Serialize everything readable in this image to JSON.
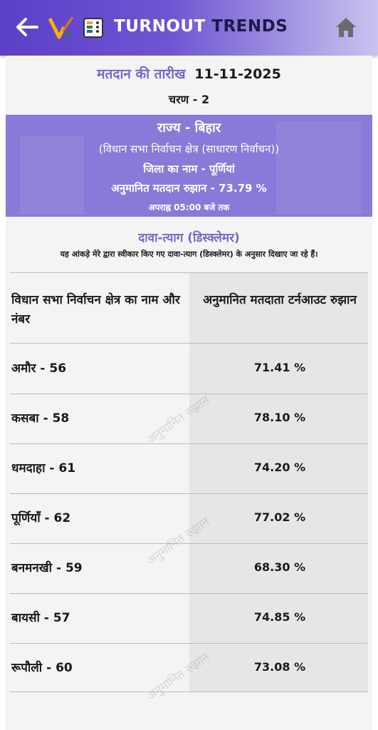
{
  "header": {
    "title_part1": "TURNOUT",
    "title_part2": "TRENDS",
    "back_icon": "arrow-left-icon",
    "home_icon": "home-icon",
    "colors": {
      "gradient_start": "#5b3fc8",
      "gradient_end": "#c9c3ef"
    }
  },
  "election": {
    "date_label": "मतदान की तारीख",
    "date_value": "11-11-2025",
    "phase": "चरण - 2"
  },
  "banner": {
    "state": "राज्य - बिहार",
    "constituency_type": "(विधान सभा निर्वाचन क्षेत्र (साधारण निर्वाचन))",
    "district": "जिला का नाम - पूर्णियां",
    "estimated_turnout": "अनुमानित मतदान रुझान - 73.79 %",
    "time": "अपराह्न 05:00 बजे तक",
    "color": "#8a79d8"
  },
  "disclaimer": {
    "title": "दावा-त्याग (डिस्क्लेमर)",
    "text": "यह आंकड़े मेरे द्वारा स्वीकार किए गए दावा-त्याग (डिस्क्लेमर) के अनुसार दिखाए जा रहे हैं।"
  },
  "table": {
    "header_left": "विधान सभा निर्वाचन क्षेत्र का नाम और नंबर",
    "header_right": "अनुमानित मतदाता टर्नआउट रुझान",
    "watermark": "अनुमानित रुझान",
    "rows": [
      {
        "name": "अमौर - 56",
        "value": "71.41 %"
      },
      {
        "name": "कसबा - 58",
        "value": "78.10 %"
      },
      {
        "name": "धमदाहा - 61",
        "value": "74.20 %"
      },
      {
        "name": "पूर्णियाँ - 62",
        "value": "77.02 %"
      },
      {
        "name": "बनमनखी - 59",
        "value": "68.30 %"
      },
      {
        "name": "बायसी - 57",
        "value": "74.85 %"
      },
      {
        "name": "रूपौली - 60",
        "value": "73.08 %"
      }
    ]
  }
}
